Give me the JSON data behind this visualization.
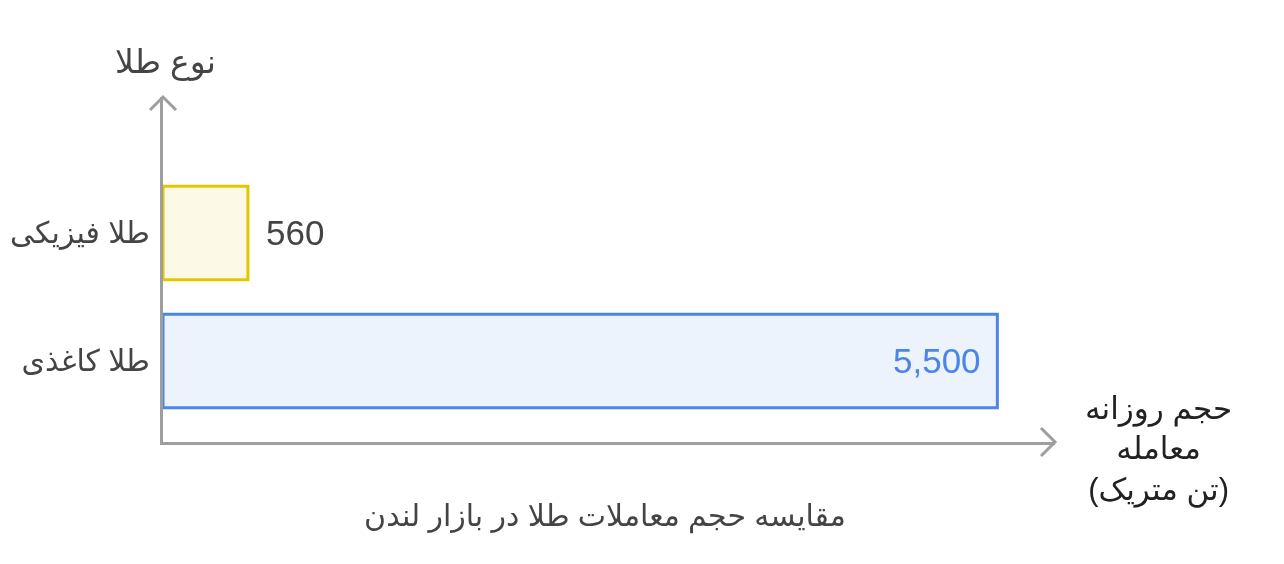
{
  "chart_data": {
    "type": "bar",
    "orientation": "horizontal",
    "title": "مقایسه حجم معاملات طلا در بازار لندن",
    "xlabel": "حجم روزانه\nمعامله\n(تن متریک)",
    "ylabel": "نوع طلا",
    "categories": [
      "طلا فیزیکی",
      "طلا کاغذی"
    ],
    "values": [
      560,
      5500
    ],
    "value_labels": [
      "560",
      "5,500"
    ],
    "colors": [
      "#e3c800",
      "#4a86e8"
    ],
    "xlim": [
      0,
      5880
    ],
    "tick_labels": "y"
  }
}
